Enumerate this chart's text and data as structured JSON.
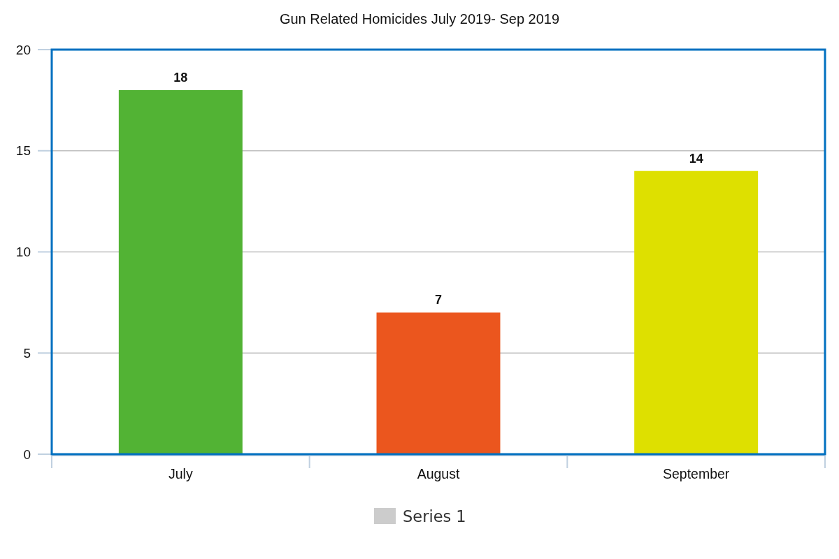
{
  "chart_data": {
    "type": "bar",
    "title": "Gun Related Homicides July 2019- Sep 2019",
    "categories": [
      "July",
      "August",
      "September"
    ],
    "series": [
      {
        "name": "Series 1",
        "color": "#cccccc",
        "colors": [
          "#52b334",
          "#eb561e",
          "#dee000"
        ],
        "values": [
          18,
          7,
          14
        ]
      }
    ],
    "ylim": [
      0,
      20
    ],
    "yticks": [
      0,
      5,
      10,
      15,
      20
    ],
    "grid": "y",
    "legend": "bottom",
    "data_labels": true
  }
}
